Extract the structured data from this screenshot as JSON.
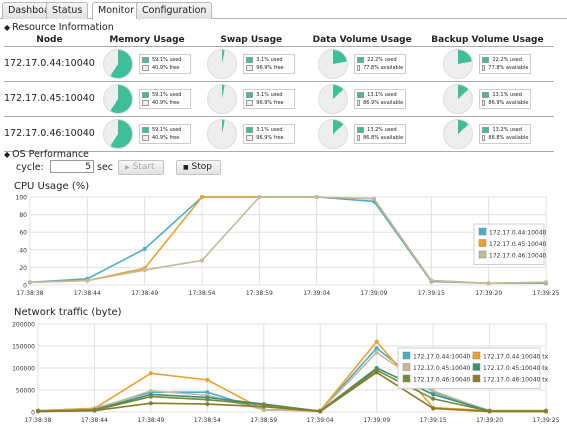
{
  "tabs": [
    {
      "label": "Dashboard",
      "active": false
    },
    {
      "label": "Status",
      "active": false
    },
    {
      "label": "Monitor",
      "active": true
    },
    {
      "label": "Configuration",
      "active": false
    }
  ],
  "resource": {
    "title": "Resource Information",
    "headers": [
      "Node",
      "Memory Usage",
      "Swap Usage",
      "Data Volume Usage",
      "Backup Volume Usage"
    ],
    "colors": {
      "used": "#3dbf9a",
      "free": "#eeeeee"
    },
    "rows": [
      {
        "node": "172.17.0.44:10040",
        "memory": {
          "used": 59.1,
          "used_label": "59.1% used",
          "free_label": "40.9% free"
        },
        "swap": {
          "used": 3.1,
          "used_label": "3.1% used",
          "free_label": "96.9% free"
        },
        "data": {
          "used": 22.2,
          "used_label": "22.2% used",
          "free_label": "77.8% available"
        },
        "backup": {
          "used": 22.2,
          "used_label": "22.2% used",
          "free_label": "77.8% available"
        }
      },
      {
        "node": "172.17.0.45:10040",
        "memory": {
          "used": 59.1,
          "used_label": "59.1% used",
          "free_label": "40.9% free"
        },
        "swap": {
          "used": 3.1,
          "used_label": "3.1% used",
          "free_label": "96.9% free"
        },
        "data": {
          "used": 13.1,
          "used_label": "13.1% used",
          "free_label": "86.9% available"
        },
        "backup": {
          "used": 13.1,
          "used_label": "13.1% used",
          "free_label": "86.9% available"
        }
      },
      {
        "node": "172.17.0.46:10040",
        "memory": {
          "used": 59.1,
          "used_label": "59.1% used",
          "free_label": "40.9% free"
        },
        "swap": {
          "used": 3.1,
          "used_label": "3.1% used",
          "free_label": "96.9% free"
        },
        "data": {
          "used": 13.2,
          "used_label": "13.2% used",
          "free_label": "86.8% available"
        },
        "backup": {
          "used": 13.2,
          "used_label": "13.2% used",
          "free_label": "86.8% available"
        }
      }
    ]
  },
  "performance": {
    "title": "OS Performance",
    "cycle_label": "cycle:",
    "cycle_value": "5",
    "cycle_unit": "sec",
    "start_label": "Start",
    "stop_label": "Stop"
  },
  "chart_data": [
    {
      "type": "line",
      "title": "CPU Usage (%)",
      "x": [
        "17:38:38",
        "17:38:44",
        "17:38:49",
        "17:38:54",
        "17:38:59",
        "17:39:04",
        "17:39:09",
        "17:39:15",
        "17:39:20",
        "17:39:25"
      ],
      "ylim": [
        0,
        100
      ],
      "yticks": [
        0,
        20,
        40,
        60,
        80,
        100
      ],
      "grid": true,
      "legend_position": "right",
      "series": [
        {
          "name": "172.17.0.44:10040",
          "color": "#4bacc6",
          "values": [
            3,
            7,
            41,
            100,
            100,
            100,
            95,
            4,
            2,
            2
          ]
        },
        {
          "name": "172.17.0.45:10040",
          "color": "#f0a030",
          "values": [
            3,
            5,
            19,
            100,
            100,
            100,
            98,
            5,
            2,
            3
          ]
        },
        {
          "name": "172.17.0.46:10040",
          "color": "#c4b99a",
          "values": [
            3,
            5,
            17,
            28,
            100,
            100,
            98,
            5,
            2,
            3
          ]
        }
      ]
    },
    {
      "type": "line",
      "title": "Network traffic (byte)",
      "x": [
        "17:38:38",
        "17:38:44",
        "17:38:49",
        "17:38:54",
        "17:38:59",
        "17:39:04",
        "17:39:09",
        "17:39:15",
        "17:39:20",
        "17:39:25"
      ],
      "ylim": [
        0,
        200000
      ],
      "yticks": [
        0,
        50000,
        100000,
        150000,
        200000
      ],
      "grid": true,
      "legend_position": "right",
      "series": [
        {
          "name": "172.17.0.44:10040 rx",
          "color": "#4bacc6",
          "values": [
            3000,
            8000,
            45000,
            45000,
            5000,
            3000,
            145000,
            45000,
            3000,
            3000
          ]
        },
        {
          "name": "172.17.0.44:10040 tx",
          "color": "#f0a030",
          "values": [
            3000,
            8000,
            88000,
            73000,
            5000,
            3000,
            160000,
            10000,
            3000,
            3000
          ]
        },
        {
          "name": "172.17.0.45:10040 rx",
          "color": "#c4b99a",
          "values": [
            2000,
            6000,
            48000,
            38000,
            5000,
            2000,
            135000,
            48000,
            2000,
            2000
          ]
        },
        {
          "name": "172.17.0.45:10040 tx",
          "color": "#3f8f78",
          "values": [
            2000,
            5000,
            40000,
            33000,
            18000,
            2000,
            100000,
            40000,
            2000,
            2000
          ]
        },
        {
          "name": "172.17.0.46:10040 rx",
          "color": "#6e8a3a",
          "values": [
            2000,
            4000,
            35000,
            28000,
            16000,
            2000,
            95000,
            30000,
            2000,
            2000
          ]
        },
        {
          "name": "172.17.0.46:10040 tx",
          "color": "#8a7a2a",
          "values": [
            1000,
            3000,
            20000,
            18000,
            12000,
            1000,
            90000,
            8000,
            1000,
            1000
          ]
        }
      ]
    }
  ]
}
